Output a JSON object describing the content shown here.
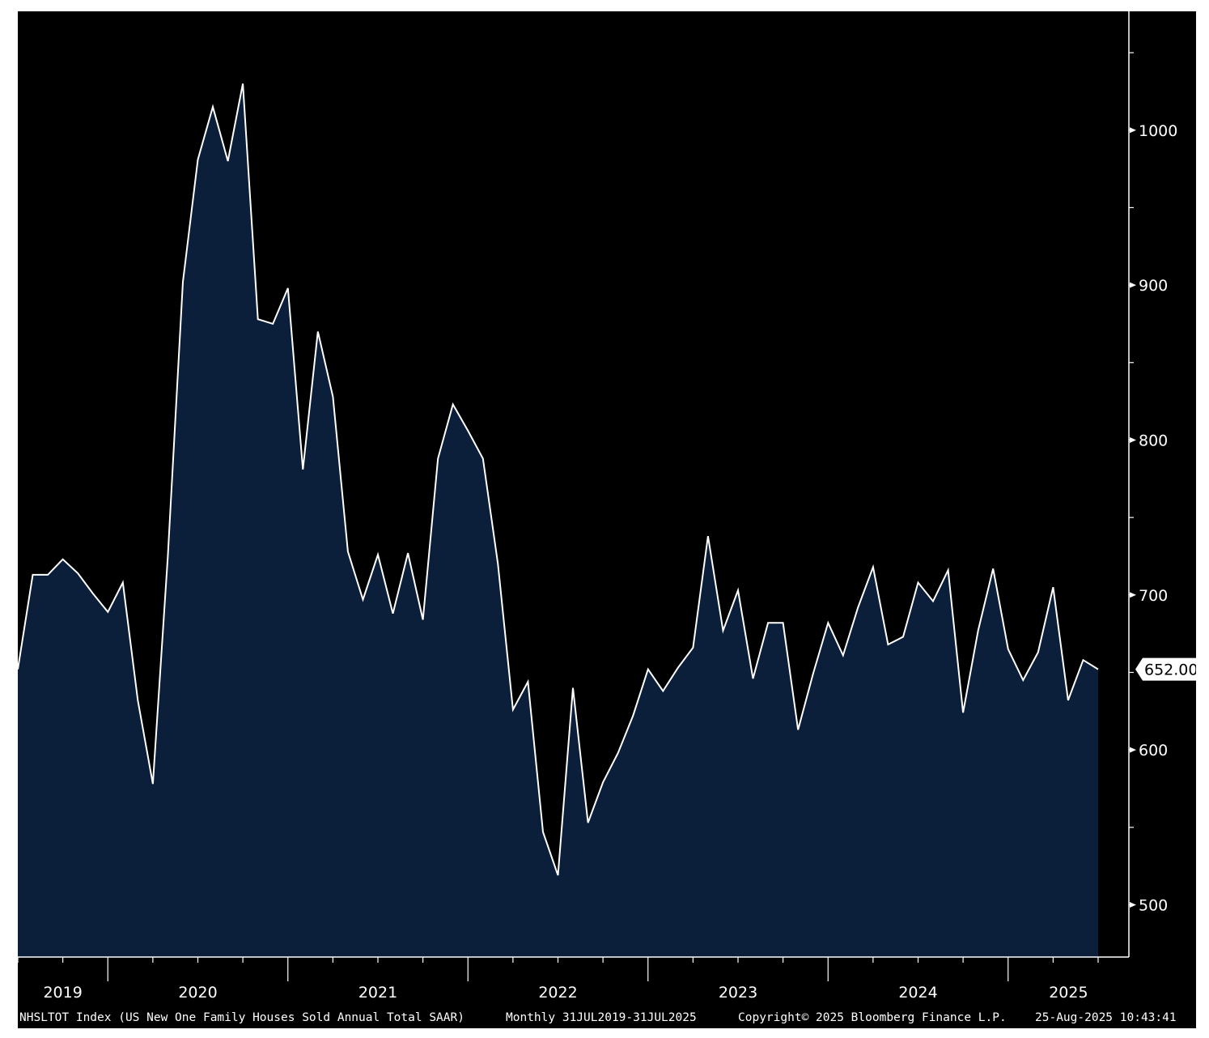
{
  "chart_data": {
    "type": "area",
    "y_ticks": [
      500,
      600,
      700,
      800,
      900,
      1000
    ],
    "ylim": [
      470,
      1080
    ],
    "x_year_labels": [
      "2019",
      "2020",
      "2021",
      "2022",
      "2023",
      "2024",
      "2025"
    ],
    "last_value_label": "652.00",
    "x": [
      "2019-07",
      "2019-08",
      "2019-09",
      "2019-10",
      "2019-11",
      "2019-12",
      "2020-01",
      "2020-02",
      "2020-03",
      "2020-04",
      "2020-05",
      "2020-06",
      "2020-07",
      "2020-08",
      "2020-09",
      "2020-10",
      "2020-11",
      "2020-12",
      "2021-01",
      "2021-02",
      "2021-03",
      "2021-04",
      "2021-05",
      "2021-06",
      "2021-07",
      "2021-08",
      "2021-09",
      "2021-10",
      "2021-11",
      "2021-12",
      "2022-01",
      "2022-02",
      "2022-03",
      "2022-04",
      "2022-05",
      "2022-06",
      "2022-07",
      "2022-08",
      "2022-09",
      "2022-10",
      "2022-11",
      "2022-12",
      "2023-01",
      "2023-02",
      "2023-03",
      "2023-04",
      "2023-05",
      "2023-06",
      "2023-07",
      "2023-08",
      "2023-09",
      "2023-10",
      "2023-11",
      "2023-12",
      "2024-01",
      "2024-02",
      "2024-03",
      "2024-04",
      "2024-05",
      "2024-06",
      "2024-07",
      "2024-08",
      "2024-09",
      "2024-10",
      "2024-11",
      "2024-12",
      "2025-01",
      "2025-02",
      "2025-03",
      "2025-04",
      "2025-05",
      "2025-06",
      "2025-07"
    ],
    "values": [
      652,
      713,
      713,
      723,
      714,
      701,
      689,
      708,
      632,
      578,
      725,
      902,
      981,
      1015,
      980,
      1030,
      878,
      875,
      898,
      781,
      870,
      828,
      728,
      697,
      726,
      688,
      727,
      684,
      788,
      823,
      806,
      788,
      720,
      626,
      644,
      547,
      519,
      640,
      553,
      579,
      598,
      622,
      652,
      638,
      653,
      666,
      738,
      677,
      703,
      646,
      682,
      682,
      613,
      649,
      682,
      661,
      692,
      718,
      668,
      673,
      708,
      696,
      716,
      624,
      677,
      717,
      665,
      645,
      663,
      705,
      632,
      658,
      652
    ]
  },
  "footer": {
    "series": "NHSLTOT Index (US New One Family Houses Sold Annual Total SAAR)",
    "range": "Monthly 31JUL2019-31JUL2025",
    "copyright": "Copyright© 2025 Bloomberg Finance L.P.",
    "timestamp": "25-Aug-2025 10:43:41"
  },
  "colors": {
    "background": "#000000",
    "area_fill": "#0b1e3a",
    "line": "#ffffff",
    "axis": "#ffffff",
    "last_label_bg": "#ffffff"
  }
}
